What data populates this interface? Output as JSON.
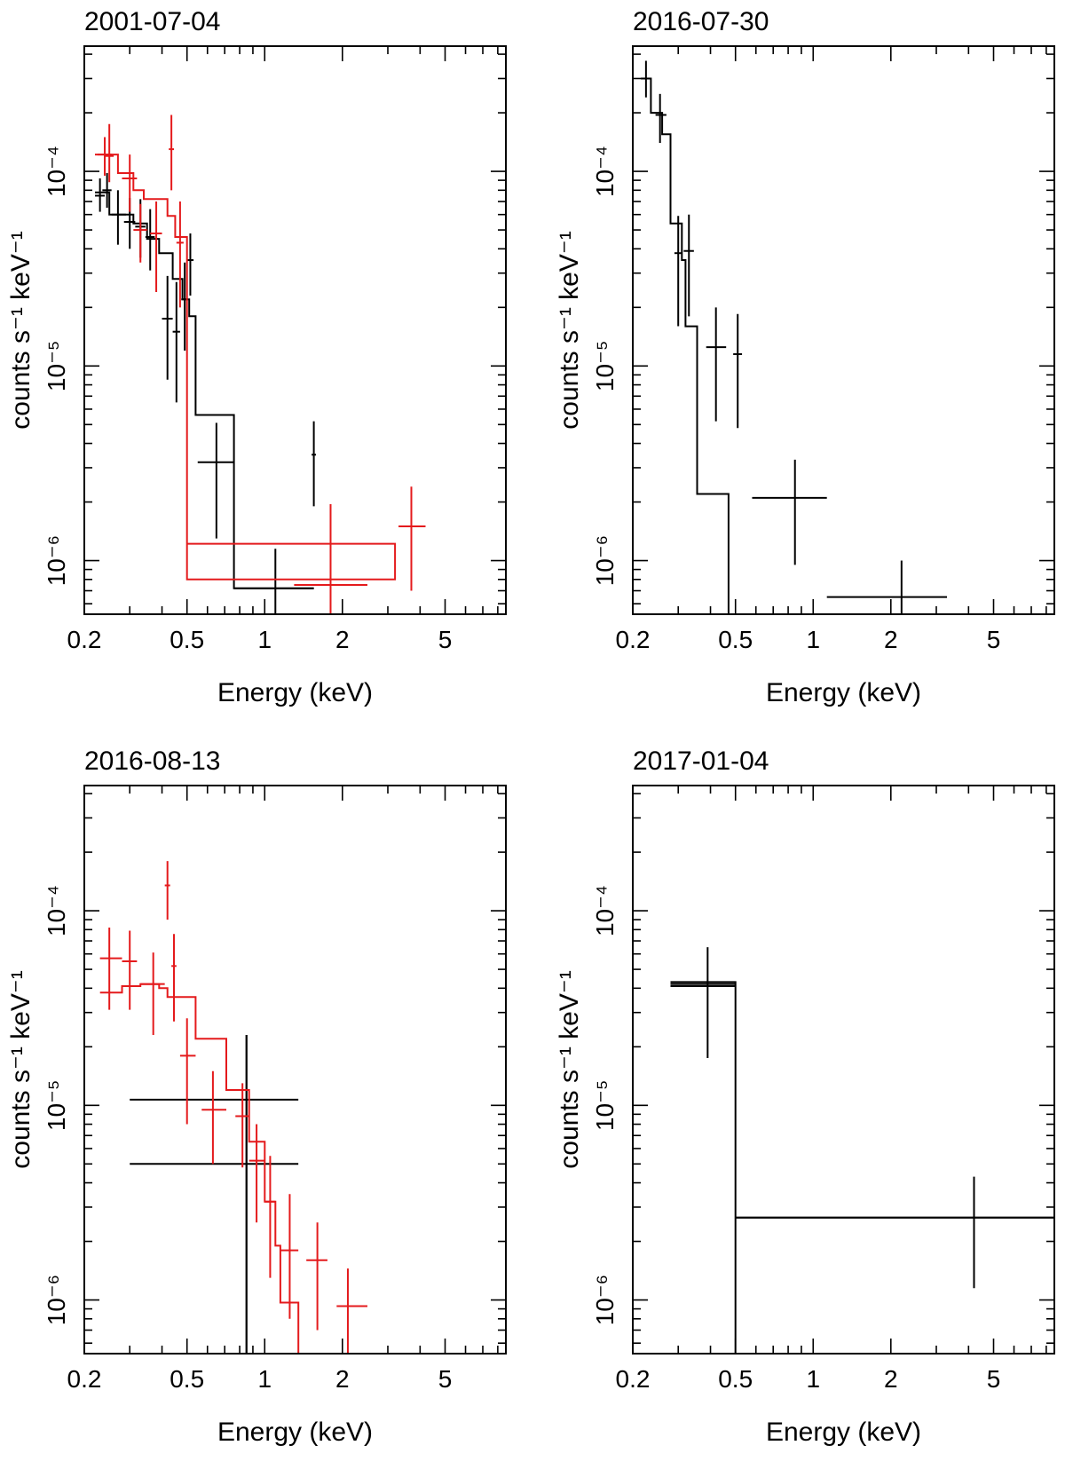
{
  "chart_data": [
    {
      "type": "scatter",
      "title": "2001-07-04",
      "xlabel": "Energy (keV)",
      "ylabel": "counts s⁻¹ keV⁻¹",
      "x_scale": "log",
      "y_scale": "log",
      "xlim": [
        0.2,
        8.6
      ],
      "ylim": [
        5.3e-07,
        0.00044
      ],
      "x_ticks": [
        {
          "value": 0.2,
          "label": "0.2"
        },
        {
          "value": 0.5,
          "label": "0.5"
        },
        {
          "value": 1,
          "label": "1"
        },
        {
          "value": 2,
          "label": "2"
        },
        {
          "value": 5,
          "label": "5"
        }
      ],
      "y_ticks": [
        {
          "value": 1e-06,
          "label": "10⁻⁶"
        },
        {
          "value": 1e-05,
          "label": "10⁻⁵"
        },
        {
          "value": 0.0001,
          "label": "10⁻⁴"
        }
      ],
      "series": [
        {
          "color": "#000000",
          "points": [
            {
              "x": 0.23,
              "xlo": 0.22,
              "xhi": 0.24,
              "y": 7.5e-05,
              "ylo": 6.2e-05,
              "yhi": 9.2e-05
            },
            {
              "x": 0.245,
              "xlo": 0.235,
              "xhi": 0.255,
              "y": 8e-05,
              "ylo": 6.5e-05,
              "yhi": 9.8e-05
            },
            {
              "x": 0.27,
              "xlo": 0.255,
              "xhi": 0.29,
              "y": 6e-05,
              "ylo": 4.2e-05,
              "yhi": 8e-05
            },
            {
              "x": 0.3,
              "xlo": 0.285,
              "xhi": 0.315,
              "y": 5.5e-05,
              "ylo": 4e-05,
              "yhi": 7.3e-05
            },
            {
              "x": 0.33,
              "xlo": 0.315,
              "xhi": 0.345,
              "y": 5.2e-05,
              "ylo": 3.6e-05,
              "yhi": 7.2e-05
            },
            {
              "x": 0.36,
              "xlo": 0.345,
              "xhi": 0.375,
              "y": 4.6e-05,
              "ylo": 3.1e-05,
              "yhi": 6.4e-05
            },
            {
              "x": 0.42,
              "xlo": 0.4,
              "xhi": 0.44,
              "y": 1.75e-05,
              "ylo": 8.5e-06,
              "yhi": 2.9e-05
            },
            {
              "x": 0.455,
              "xlo": 0.44,
              "xhi": 0.47,
              "y": 1.5e-05,
              "ylo": 6.5e-06,
              "yhi": 2.7e-05
            },
            {
              "x": 0.49,
              "xlo": 0.475,
              "xhi": 0.505,
              "y": 2.2e-05,
              "ylo": 1.2e-05,
              "yhi": 3.4e-05
            },
            {
              "x": 0.515,
              "xlo": 0.5,
              "xhi": 0.53,
              "y": 3.5e-05,
              "ylo": 2.3e-05,
              "yhi": 4.8e-05
            },
            {
              "x": 0.65,
              "xlo": 0.55,
              "xhi": 0.76,
              "y": 3.2e-06,
              "ylo": 1.3e-06,
              "yhi": 5.1e-06
            },
            {
              "x": 1.1,
              "xlo": 0.76,
              "xhi": 1.55,
              "y": 7.2e-07,
              "ylo": 3e-07,
              "yhi": 1.15e-06
            },
            {
              "x": 1.55,
              "xlo": 1.52,
              "xhi": 1.58,
              "y": 3.5e-06,
              "ylo": 1.9e-06,
              "yhi": 5.2e-06
            }
          ],
          "model": [
            [
              0.22,
              7.8e-05
            ],
            [
              0.25,
              7.8e-05
            ],
            [
              0.25,
              6e-05
            ],
            [
              0.31,
              6e-05
            ],
            [
              0.31,
              5.4e-05
            ],
            [
              0.35,
              5.4e-05
            ],
            [
              0.35,
              4.5e-05
            ],
            [
              0.39,
              4.5e-05
            ],
            [
              0.39,
              3.8e-05
            ],
            [
              0.44,
              3.8e-05
            ],
            [
              0.44,
              2.8e-05
            ],
            [
              0.48,
              2.8e-05
            ],
            [
              0.48,
              2.2e-05
            ],
            [
              0.51,
              2.2e-05
            ],
            [
              0.51,
              1.8e-05
            ],
            [
              0.54,
              1.8e-05
            ],
            [
              0.54,
              5.6e-06
            ],
            [
              0.76,
              5.6e-06
            ],
            [
              0.76,
              7.2e-07
            ],
            [
              1.55,
              7.2e-07
            ]
          ]
        },
        {
          "color": "#e41a1c",
          "points": [
            {
              "x": 0.24,
              "xlo": 0.225,
              "xhi": 0.255,
              "y": 0.000122,
              "ylo": 9.5e-05,
              "yhi": 0.00015
            },
            {
              "x": 0.25,
              "xlo": 0.24,
              "xhi": 0.26,
              "y": 0.00012,
              "ylo": 8.8e-05,
              "yhi": 0.000175
            },
            {
              "x": 0.3,
              "xlo": 0.28,
              "xhi": 0.32,
              "y": 9.2e-05,
              "ylo": 6.2e-05,
              "yhi": 0.000122
            },
            {
              "x": 0.33,
              "xlo": 0.31,
              "xhi": 0.35,
              "y": 5e-05,
              "ylo": 3.4e-05,
              "yhi": 6.8e-05
            },
            {
              "x": 0.38,
              "xlo": 0.36,
              "xhi": 0.4,
              "y": 4.8e-05,
              "ylo": 2.4e-05,
              "yhi": 7e-05
            },
            {
              "x": 0.435,
              "xlo": 0.425,
              "xhi": 0.445,
              "y": 0.00013,
              "ylo": 8e-05,
              "yhi": 0.000195
            },
            {
              "x": 0.47,
              "xlo": 0.455,
              "xhi": 0.485,
              "y": 4.3e-05,
              "ylo": 2e-05,
              "yhi": 7e-05
            },
            {
              "x": 1.8,
              "xlo": 1.3,
              "xhi": 2.5,
              "y": 7.5e-07,
              "ylo": 2.5e-07,
              "yhi": 1.95e-06
            },
            {
              "x": 3.7,
              "xlo": 3.3,
              "xhi": 4.2,
              "y": 1.5e-06,
              "ylo": 7e-07,
              "yhi": 2.4e-06
            }
          ],
          "model": [
            [
              0.22,
              0.000122
            ],
            [
              0.27,
              0.000122
            ],
            [
              0.27,
              9.8e-05
            ],
            [
              0.31,
              9.8e-05
            ],
            [
              0.31,
              8e-05
            ],
            [
              0.34,
              8e-05
            ],
            [
              0.34,
              7.2e-05
            ],
            [
              0.42,
              7.2e-05
            ],
            [
              0.42,
              5.9e-05
            ],
            [
              0.45,
              5.9e-05
            ],
            [
              0.45,
              4.6e-05
            ],
            [
              0.5,
              4.6e-05
            ],
            [
              0.5,
              1.22e-06
            ],
            [
              3.2,
              1.22e-06
            ],
            [
              3.2,
              8e-07
            ],
            [
              0.5,
              8e-07
            ],
            [
              0.5,
              1.8e-05
            ]
          ]
        }
      ]
    },
    {
      "type": "scatter",
      "title": "2016-07-30",
      "xlabel": "Energy (keV)",
      "ylabel": "counts s⁻¹ keV⁻¹",
      "x_scale": "log",
      "y_scale": "log",
      "xlim": [
        0.2,
        8.6
      ],
      "ylim": [
        5.3e-07,
        0.00044
      ],
      "x_ticks": [
        {
          "value": 0.2,
          "label": "0.2"
        },
        {
          "value": 0.5,
          "label": "0.5"
        },
        {
          "value": 1,
          "label": "1"
        },
        {
          "value": 2,
          "label": "2"
        },
        {
          "value": 5,
          "label": "5"
        }
      ],
      "y_ticks": [
        {
          "value": 1e-06,
          "label": "10⁻⁶"
        },
        {
          "value": 1e-05,
          "label": "10⁻⁵"
        },
        {
          "value": 0.0001,
          "label": "10⁻⁴"
        }
      ],
      "series": [
        {
          "color": "#000000",
          "points": [
            {
              "x": 0.225,
              "xlo": 0.215,
              "xhi": 0.235,
              "y": 0.0003,
              "ylo": 0.00024,
              "yhi": 0.00037
            },
            {
              "x": 0.255,
              "xlo": 0.245,
              "xhi": 0.27,
              "y": 0.000195,
              "ylo": 0.00014,
              "yhi": 0.00025
            },
            {
              "x": 0.3,
              "xlo": 0.29,
              "xhi": 0.31,
              "y": 3.8e-05,
              "ylo": 1.6e-05,
              "yhi": 5.9e-05
            },
            {
              "x": 0.33,
              "xlo": 0.315,
              "xhi": 0.345,
              "y": 3.9e-05,
              "ylo": 1.8e-05,
              "yhi": 6e-05
            },
            {
              "x": 0.42,
              "xlo": 0.385,
              "xhi": 0.46,
              "y": 1.25e-05,
              "ylo": 5.2e-06,
              "yhi": 2e-05
            },
            {
              "x": 0.51,
              "xlo": 0.49,
              "xhi": 0.53,
              "y": 1.15e-05,
              "ylo": 4.8e-06,
              "yhi": 1.85e-05
            },
            {
              "x": 0.85,
              "xlo": 0.58,
              "xhi": 1.13,
              "y": 2.1e-06,
              "ylo": 9.5e-07,
              "yhi": 3.3e-06
            },
            {
              "x": 2.2,
              "xlo": 1.13,
              "xhi": 3.3,
              "y": 6.5e-07,
              "ylo": 3e-07,
              "yhi": 1e-06
            }
          ],
          "model": [
            [
              0.215,
              0.0003
            ],
            [
              0.235,
              0.0003
            ],
            [
              0.235,
              0.0002
            ],
            [
              0.26,
              0.0002
            ],
            [
              0.26,
              0.000155
            ],
            [
              0.28,
              0.000155
            ],
            [
              0.28,
              5.4e-05
            ],
            [
              0.31,
              5.4e-05
            ],
            [
              0.31,
              3.5e-05
            ],
            [
              0.32,
              3.5e-05
            ],
            [
              0.32,
              1.6e-05
            ],
            [
              0.355,
              1.6e-05
            ],
            [
              0.355,
              2.2e-06
            ],
            [
              0.47,
              2.2e-06
            ],
            [
              0.47,
              3e-07
            ]
          ]
        }
      ]
    },
    {
      "type": "scatter",
      "title": "2016-08-13",
      "xlabel": "Energy (keV)",
      "ylabel": "counts s⁻¹ keV⁻¹",
      "x_scale": "log",
      "y_scale": "log",
      "xlim": [
        0.2,
        8.6
      ],
      "ylim": [
        5.3e-07,
        0.00044
      ],
      "x_ticks": [
        {
          "value": 0.2,
          "label": "0.2"
        },
        {
          "value": 0.5,
          "label": "0.5"
        },
        {
          "value": 1,
          "label": "1"
        },
        {
          "value": 2,
          "label": "2"
        },
        {
          "value": 5,
          "label": "5"
        }
      ],
      "y_ticks": [
        {
          "value": 1e-06,
          "label": "10⁻⁶"
        },
        {
          "value": 1e-05,
          "label": "10⁻⁵"
        },
        {
          "value": 0.0001,
          "label": "10⁻⁴"
        }
      ],
      "series": [
        {
          "color": "#000000",
          "points": [
            {
              "x": 0.85,
              "xlo": 0.3,
              "xhi": 1.35,
              "y": 1.07e-05,
              "ylo": 3e-07,
              "yhi": 2.3e-05
            },
            {
              "x": 0.85,
              "xlo": 0.3,
              "xhi": 1.35,
              "y": 5e-06,
              "ylo": 3e-07,
              "yhi": 2.3e-05
            }
          ],
          "model": []
        },
        {
          "color": "#e41a1c",
          "points": [
            {
              "x": 0.25,
              "xlo": 0.23,
              "xhi": 0.28,
              "y": 5.7e-05,
              "ylo": 3.1e-05,
              "yhi": 8.2e-05
            },
            {
              "x": 0.3,
              "xlo": 0.28,
              "xhi": 0.32,
              "y": 5.5e-05,
              "ylo": 3.1e-05,
              "yhi": 7.9e-05
            },
            {
              "x": 0.37,
              "xlo": 0.33,
              "xhi": 0.41,
              "y": 4.2e-05,
              "ylo": 2.3e-05,
              "yhi": 6.1e-05
            },
            {
              "x": 0.42,
              "xlo": 0.41,
              "xhi": 0.43,
              "y": 0.000135,
              "ylo": 9e-05,
              "yhi": 0.00018
            },
            {
              "x": 0.445,
              "xlo": 0.435,
              "xhi": 0.455,
              "y": 5.2e-05,
              "ylo": 2.7e-05,
              "yhi": 7.6e-05
            },
            {
              "x": 0.5,
              "xlo": 0.47,
              "xhi": 0.54,
              "y": 1.8e-05,
              "ylo": 8e-06,
              "yhi": 2.8e-05
            },
            {
              "x": 0.63,
              "xlo": 0.57,
              "xhi": 0.71,
              "y": 9.5e-06,
              "ylo": 5e-06,
              "yhi": 1.5e-05
            },
            {
              "x": 0.82,
              "xlo": 0.77,
              "xhi": 0.87,
              "y": 8.8e-06,
              "ylo": 4.8e-06,
              "yhi": 1.3e-05
            },
            {
              "x": 0.93,
              "xlo": 0.87,
              "xhi": 1.0,
              "y": 5.2e-06,
              "ylo": 2.5e-06,
              "yhi": 8e-06
            },
            {
              "x": 1.05,
              "xlo": 1.0,
              "xhi": 1.1,
              "y": 3.2e-06,
              "ylo": 1.3e-06,
              "yhi": 5.5e-06
            },
            {
              "x": 1.25,
              "xlo": 1.15,
              "xhi": 1.35,
              "y": 1.8e-06,
              "ylo": 8e-07,
              "yhi": 3.5e-06
            },
            {
              "x": 1.6,
              "xlo": 1.45,
              "xhi": 1.75,
              "y": 1.6e-06,
              "ylo": 7e-07,
              "yhi": 2.5e-06
            },
            {
              "x": 2.1,
              "xlo": 1.9,
              "xhi": 2.5,
              "y": 9.3e-07,
              "ylo": 3e-07,
              "yhi": 1.45e-06
            }
          ],
          "model": [
            [
              0.23,
              3.8e-05
            ],
            [
              0.28,
              3.8e-05
            ],
            [
              0.28,
              4.1e-05
            ],
            [
              0.33,
              4.1e-05
            ],
            [
              0.33,
              4.2e-05
            ],
            [
              0.39,
              4.2e-05
            ],
            [
              0.39,
              4e-05
            ],
            [
              0.42,
              4e-05
            ],
            [
              0.42,
              3.6e-05
            ],
            [
              0.54,
              3.6e-05
            ],
            [
              0.54,
              2.2e-05
            ],
            [
              0.71,
              2.2e-05
            ],
            [
              0.71,
              1.2e-05
            ],
            [
              0.87,
              1.2e-05
            ],
            [
              0.87,
              6.5e-06
            ],
            [
              1.0,
              6.5e-06
            ],
            [
              1.0,
              3.2e-06
            ],
            [
              1.1,
              3.2e-06
            ],
            [
              1.1,
              1.9e-06
            ],
            [
              1.15,
              1.9e-06
            ],
            [
              1.15,
              9.7e-07
            ],
            [
              1.35,
              9.7e-07
            ],
            [
              1.35,
              3e-07
            ]
          ]
        }
      ]
    },
    {
      "type": "scatter",
      "title": "2017-01-04",
      "xlabel": "Energy (keV)",
      "ylabel": "counts s⁻¹ keV⁻¹",
      "x_scale": "log",
      "y_scale": "log",
      "xlim": [
        0.2,
        8.6
      ],
      "ylim": [
        5.3e-07,
        0.00044
      ],
      "x_ticks": [
        {
          "value": 0.2,
          "label": "0.2"
        },
        {
          "value": 0.5,
          "label": "0.5"
        },
        {
          "value": 1,
          "label": "1"
        },
        {
          "value": 2,
          "label": "2"
        },
        {
          "value": 5,
          "label": "5"
        }
      ],
      "y_ticks": [
        {
          "value": 1e-06,
          "label": "10⁻⁶"
        },
        {
          "value": 1e-05,
          "label": "10⁻⁵"
        },
        {
          "value": 0.0001,
          "label": "10⁻⁴"
        }
      ],
      "series": [
        {
          "color": "#000000",
          "points": [
            {
              "x": 0.39,
              "xlo": 0.28,
              "xhi": 0.5,
              "y": 4.2e-05,
              "ylo": 1.75e-05,
              "yhi": 6.5e-05
            },
            {
              "x": 4.2,
              "xlo": 0.5,
              "xhi": 8.6,
              "y": 2.65e-06,
              "ylo": 1.15e-06,
              "yhi": 4.3e-06
            }
          ],
          "model": [
            [
              0.28,
              4.3e-05
            ],
            [
              0.5,
              4.3e-05
            ],
            [
              0.5,
              2.65e-06
            ],
            [
              8.6,
              2.65e-06
            ],
            [
              0.5,
              2.65e-06
            ],
            [
              0.5,
              3e-07
            ],
            [
              0.5,
              4.1e-05
            ],
            [
              0.28,
              4.1e-05
            ]
          ]
        }
      ]
    }
  ]
}
